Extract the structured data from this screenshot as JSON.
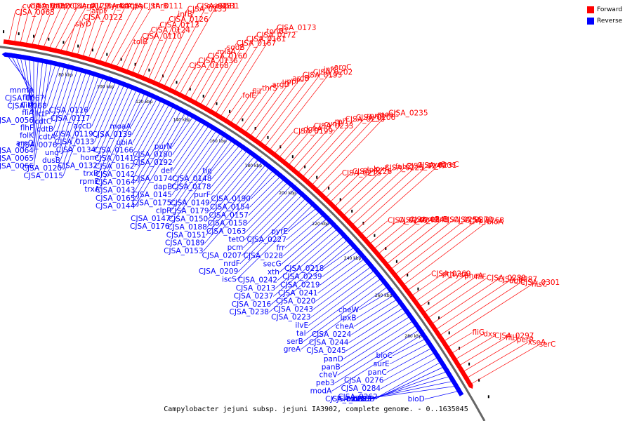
{
  "legend": {
    "forward": {
      "label": "Forward",
      "color": "#ff0000"
    },
    "reverse": {
      "label": "Reverse",
      "color": "#0000ff"
    }
  },
  "caption": "Campylobacter jejuni subsp. jejuni IA3902, complete genome. - 0..1635045",
  "ticks": [
    "80 kbp",
    "100 kbp",
    "120 kbp",
    "140 kbp",
    "160 kbp",
    "180 kbp",
    "200 kbp",
    "220 kbp",
    "240 kbp",
    "260 kbp",
    "280 kbp"
  ],
  "forward_genes": [
    "CJSA_0063",
    "cvdA",
    "CJSA_0082",
    "atpF",
    "atpC",
    "fabD",
    "lpxC",
    "CJSA_0129",
    "dcuA",
    "rplU",
    "slyD",
    "CJSA_0122",
    "atpF",
    "CJSA_0105",
    "tyrA",
    "rbfA",
    "atpA",
    "pal",
    "CJSA_0111",
    "thrB",
    "tolB",
    "CJSA_0110",
    "CJSA_0124",
    "CJSA_0113",
    "CJSA_0126",
    "infB",
    "CJSA_0135",
    "CJSA_0131",
    "exbD1",
    "exbB1",
    "CJSA_0168",
    "CJSA_0136",
    "CJSA_0160",
    "miaA",
    "sodB",
    "CJSA_0167",
    "CJSA_0161",
    "CJSA_0172",
    "tonB1",
    "CJSA_0173",
    "folE",
    "fliI",
    "thrS",
    "argD",
    "uppP",
    "argB",
    "CJSA_0195",
    "CJSA_0202",
    "infC",
    "argC",
    "CJSA_0199",
    "dgkA",
    "CJSA_0233",
    "cynT",
    "rplT",
    "CJSA_0230",
    "CJSA_0206",
    "rpmI",
    "moaC",
    "CJSA_0235",
    "CJSA_0215",
    "CJSA_0226",
    "clpX",
    "lpxA",
    "CJSA_0225",
    "fabZ",
    "CJSA_0247",
    "CJSA_0231",
    "pyrC",
    "mreC",
    "CJSA_0240",
    "CJSA_0249",
    "CJSA_0248",
    "mreB",
    "carB",
    "CJSA_0256",
    "CJSA_0273",
    "CJSA_0268",
    "rplY",
    "bioA",
    "CJSA_0269",
    "pth",
    "lysA",
    "pheA",
    "fliF",
    "CJSA_0289",
    "CJSA_0287",
    "ubiE",
    "CJSA_0301",
    "hisC",
    "fliG",
    "dxs",
    "CJSA_0297",
    "fliH",
    "perR",
    "xseA",
    "serC"
  ],
  "reverse_genes": [
    "mnmA",
    "fliY",
    "fliM",
    "fliA",
    "CJSA_0056",
    "flhF",
    "folK",
    "aroQ",
    "CJSA_0064",
    "CJSA_0065",
    "CJSA_0066",
    "CJSA_0067",
    "CJSA_0068",
    "lctP",
    "cdtC",
    "cdtB",
    "cdtA",
    "CJSA_0076",
    "ung",
    "dusB",
    "CJSA_0120",
    "CJSA_0115",
    "CJSA_0116",
    "CJSA_0117",
    "accD",
    "CJSA_0119",
    "CJSA_0133",
    "CJSA_0134",
    "hom",
    "CJSA_0132",
    "trxB",
    "rpmE",
    "trxA",
    "moaA",
    "CJSA_0139",
    "ubiA",
    "CJSA_0166",
    "CJSA_0141",
    "CJSA_0162",
    "CJSA_0142",
    "CJSA_0164",
    "CJSA_0143",
    "CJSA_0165",
    "CJSA_0144",
    "purN",
    "CJSA_0180",
    "CJSA_0192",
    "def",
    "CJSA_0174",
    "dapB",
    "CJSA_0145",
    "CJSA_0175",
    "clpP",
    "CJSA_0147",
    "CJSA_0176",
    "tig",
    "CJSA_0148",
    "CJSA_0178",
    "purF",
    "CJSA_0149",
    "CJSA_0179",
    "CJSA_0150",
    "CJSA_0188",
    "CJSA_0151",
    "CJSA_0189",
    "CJSA_0153",
    "CJSA_0190",
    "CJSA_0154",
    "CJSA_0157",
    "CJSA_0158",
    "CJSA_0163",
    "tetO",
    "pcm",
    "CJSA_0207",
    "nrdF",
    "CJSA_0209",
    "iscS",
    "pyrE",
    "CJSA_0227",
    "frr",
    "CJSA_0228",
    "secG",
    "xth",
    "CJSA_0242",
    "CJSA_0213",
    "CJSA_0237",
    "CJSA_0216",
    "CJSA_0238",
    "CJSA_0218",
    "CJSA_0239",
    "CJSA_0219",
    "CJSA_0241",
    "CJSA_0220",
    "CJSA_0243",
    "CJSA_0223",
    "ilvE",
    "tal",
    "serB",
    "greA",
    "cheW",
    "lpxB",
    "cheA",
    "CJSA_0224",
    "CJSA_0244",
    "CJSA_0245",
    "panD",
    "panB",
    "cheV",
    "peb3",
    "modA",
    "bioC",
    "surE",
    "panC",
    "CJSA_0276",
    "CJSA_0284",
    "CJSA_0262",
    "modB",
    "CJSA_0283",
    "modC",
    "CJSA_0279",
    "bioF",
    "bioD"
  ]
}
